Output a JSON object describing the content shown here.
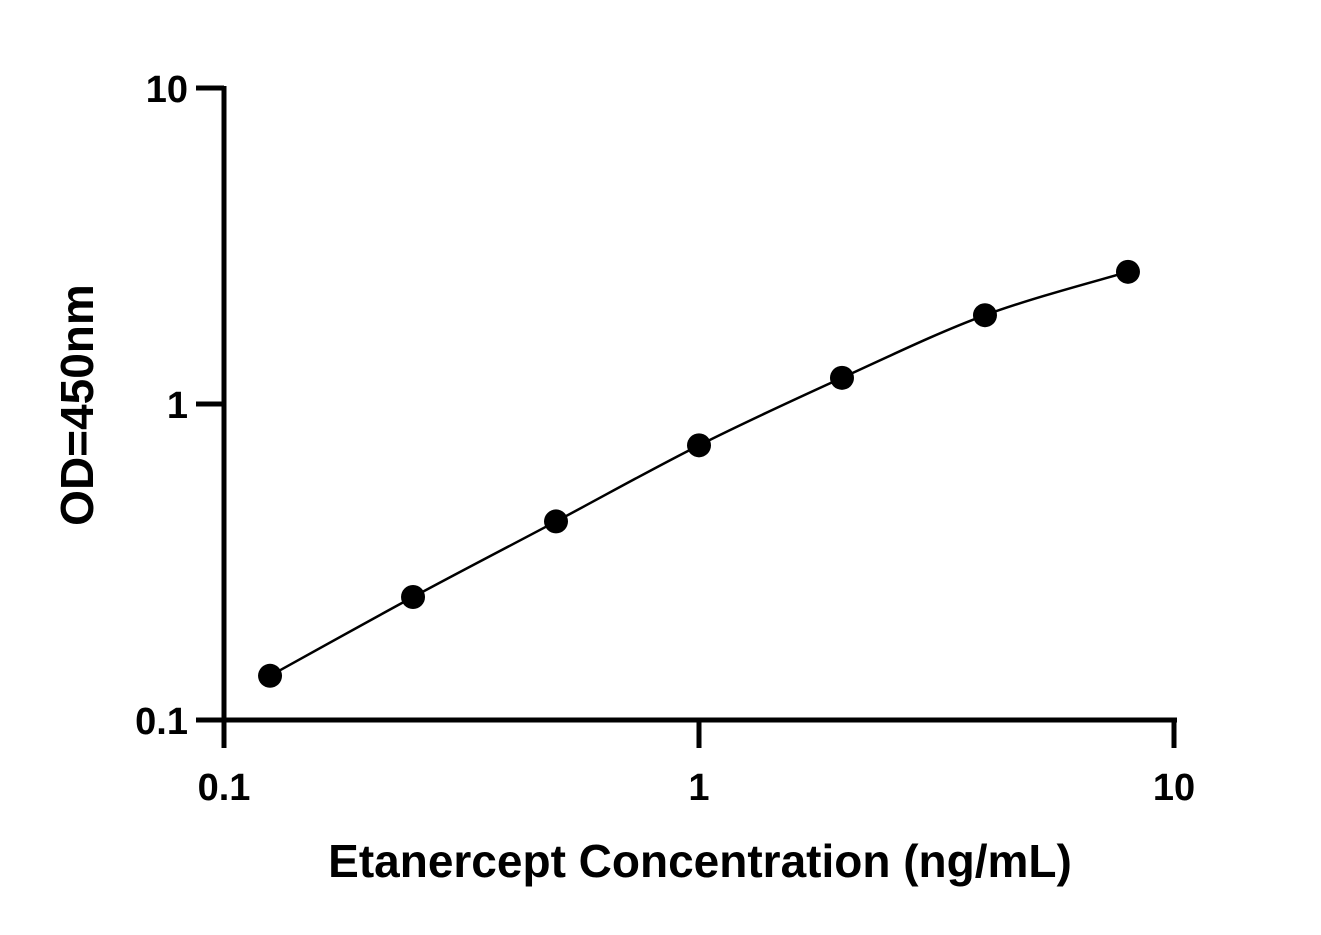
{
  "chart_data": {
    "type": "scatter",
    "title": "",
    "xlabel": "Etanercept Concentration (ng/mL)",
    "ylabel": "OD=450nm",
    "x_scale": "log",
    "y_scale": "log",
    "xlim": [
      0.1,
      10
    ],
    "ylim": [
      0.1,
      10
    ],
    "x_ticks": [
      {
        "value": 0.1,
        "label": "0.1"
      },
      {
        "value": 1,
        "label": "1"
      },
      {
        "value": 10,
        "label": "10"
      }
    ],
    "y_ticks": [
      {
        "value": 0.1,
        "label": "0.1"
      },
      {
        "value": 1,
        "label": "1"
      },
      {
        "value": 10,
        "label": "10"
      }
    ],
    "grid": false,
    "legend": "none",
    "fit_curve": true,
    "series": [
      {
        "x": [
          0.125,
          0.25,
          0.5,
          1,
          2,
          4,
          8
        ],
        "y": [
          0.138,
          0.245,
          0.425,
          0.74,
          1.21,
          1.91,
          2.62
        ]
      }
    ],
    "colors": {
      "points": "#000000",
      "curve": "#000000",
      "axes": "#000000"
    }
  }
}
